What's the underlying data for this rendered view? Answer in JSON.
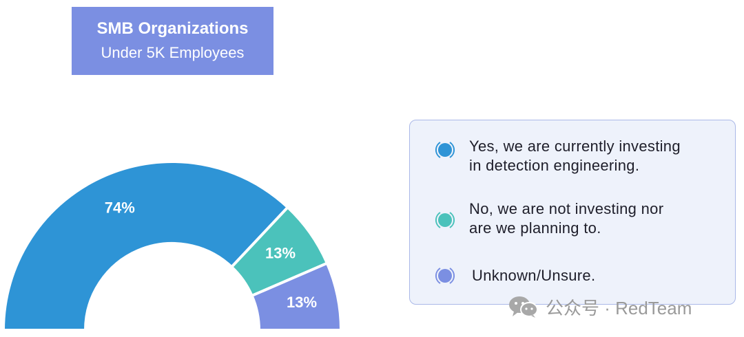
{
  "title": {
    "line1": "SMB Organizations",
    "line2": "Under 5K Employees"
  },
  "chart_data": {
    "type": "pie",
    "subtype": "half-donut",
    "labels": [
      "Yes, we are currently investing in detection engineering.",
      "No, we are not investing nor are we planning to.",
      "Unknown/Unsure."
    ],
    "values": [
      74,
      13,
      13
    ],
    "data_labels": [
      "74%",
      "13%",
      "13%"
    ],
    "colors": [
      "#2e94d6",
      "#4bc2bb",
      "#7b8fe2"
    ],
    "legend_position": "right"
  },
  "legend": {
    "items": [
      {
        "lines": [
          "Yes, we are currently investing",
          "in detection engineering."
        ],
        "color": "#2e94d6",
        "icon": "radio-dot-icon"
      },
      {
        "lines": [
          "No, we are not investing nor",
          "are we planning to."
        ],
        "color": "#4bc2bb",
        "icon": "radio-dot-icon"
      },
      {
        "lines": [
          "Unknown/Unsure."
        ],
        "color": "#7b8fe2",
        "icon": "radio-dot-icon"
      }
    ]
  },
  "watermark": {
    "icon": "wechat-icon",
    "text": "公众号 · RedTeam"
  }
}
